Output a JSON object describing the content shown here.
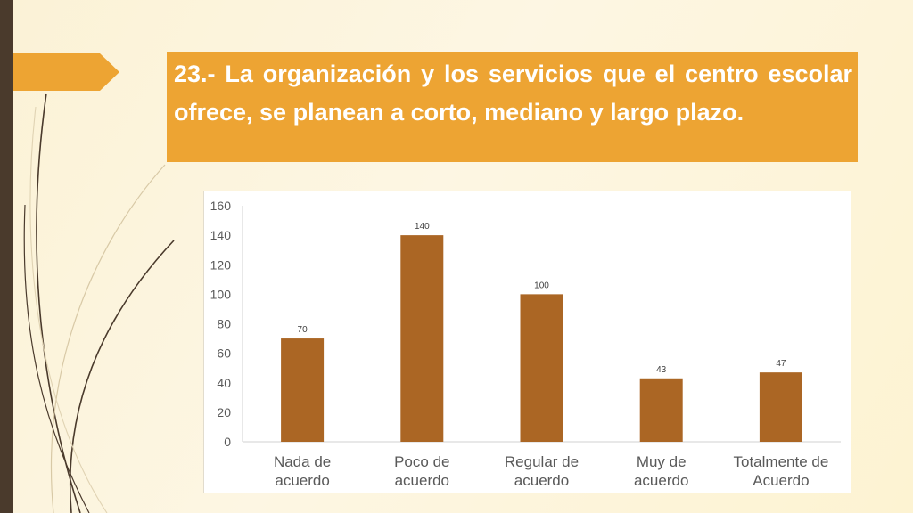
{
  "slide": {
    "title": "23.- La organización y los servicios que el centro escolar ofrece, se planean  a corto, mediano y largo plazo.",
    "accent_color": "#eda433",
    "sidebar_color": "#4a3a2c"
  },
  "chart_data": {
    "type": "bar",
    "categories": [
      [
        "Nada de",
        "acuerdo"
      ],
      [
        "Poco de",
        "acuerdo"
      ],
      [
        "Regular de",
        "acuerdo"
      ],
      [
        "Muy de",
        "acuerdo"
      ],
      [
        "Totalmente de",
        "Acuerdo"
      ]
    ],
    "values": [
      70,
      140,
      100,
      43,
      47
    ],
    "data_labels": [
      "70",
      "140",
      "100",
      "43",
      "47"
    ],
    "y_ticks": [
      0,
      20,
      40,
      60,
      80,
      100,
      120,
      140,
      160
    ],
    "ylim": [
      0,
      160
    ],
    "bar_color": "#ab6624",
    "grid": false,
    "legend": "none"
  }
}
